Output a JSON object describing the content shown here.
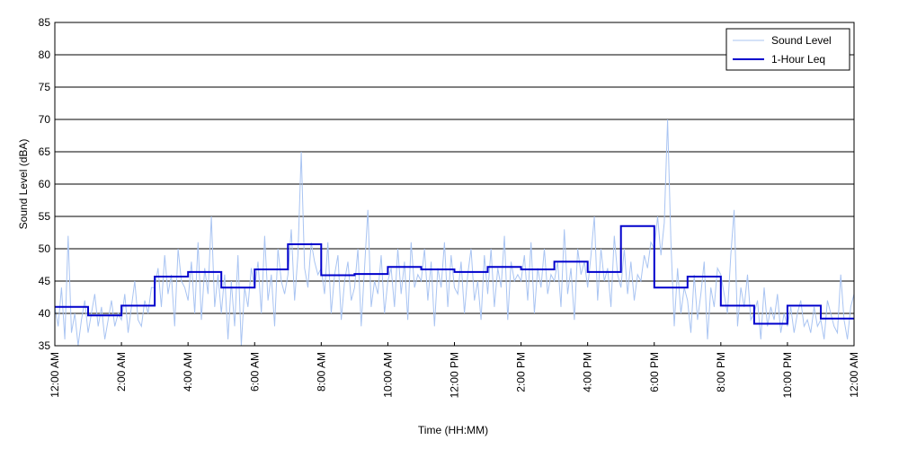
{
  "chart_data": {
    "type": "line",
    "title": "",
    "xlabel": "Time (HH:MM)",
    "ylabel": "Sound Level (dBA)",
    "xlim": [
      0,
      24
    ],
    "ylim": [
      35,
      85
    ],
    "y_ticks": [
      35,
      40,
      45,
      50,
      55,
      60,
      65,
      70,
      75,
      80,
      85
    ],
    "x_ticks": [
      {
        "hour": 0,
        "label": "12:00 AM"
      },
      {
        "hour": 2,
        "label": "2:00 AM"
      },
      {
        "hour": 4,
        "label": "4:00 AM"
      },
      {
        "hour": 6,
        "label": "6:00 AM"
      },
      {
        "hour": 8,
        "label": "8:00 AM"
      },
      {
        "hour": 10,
        "label": "10:00 AM"
      },
      {
        "hour": 12,
        "label": "12:00 PM"
      },
      {
        "hour": 14,
        "label": "2:00 PM"
      },
      {
        "hour": 16,
        "label": "4:00 PM"
      },
      {
        "hour": 18,
        "label": "6:00 PM"
      },
      {
        "hour": 20,
        "label": "8:00 PM"
      },
      {
        "hour": 22,
        "label": "10:00 PM"
      },
      {
        "hour": 24,
        "label": "12:00 AM"
      }
    ],
    "grid": "horizontal",
    "legend_position": "top-right",
    "series": [
      {
        "name": "Sound Level",
        "color": "#a9c4f2",
        "style": "thin-line",
        "x": [
          0,
          0.1,
          0.2,
          0.3,
          0.4,
          0.5,
          0.6,
          0.7,
          0.8,
          0.9,
          1,
          1.1,
          1.2,
          1.3,
          1.4,
          1.5,
          1.6,
          1.7,
          1.8,
          1.9,
          2,
          2.1,
          2.2,
          2.3,
          2.4,
          2.5,
          2.6,
          2.7,
          2.8,
          2.9,
          3,
          3.1,
          3.2,
          3.3,
          3.4,
          3.5,
          3.6,
          3.7,
          3.8,
          3.9,
          4,
          4.1,
          4.2,
          4.3,
          4.4,
          4.5,
          4.6,
          4.7,
          4.8,
          4.9,
          5,
          5.1,
          5.2,
          5.3,
          5.4,
          5.5,
          5.6,
          5.7,
          5.8,
          5.9,
          6,
          6.1,
          6.2,
          6.3,
          6.4,
          6.5,
          6.6,
          6.7,
          6.8,
          6.9,
          7,
          7.1,
          7.2,
          7.3,
          7.4,
          7.5,
          7.6,
          7.7,
          7.8,
          7.9,
          8,
          8.1,
          8.2,
          8.3,
          8.4,
          8.5,
          8.6,
          8.7,
          8.8,
          8.9,
          9,
          9.1,
          9.2,
          9.3,
          9.4,
          9.5,
          9.6,
          9.7,
          9.8,
          9.9,
          10,
          10.1,
          10.2,
          10.3,
          10.4,
          10.5,
          10.6,
          10.7,
          10.8,
          10.9,
          11,
          11.1,
          11.2,
          11.3,
          11.4,
          11.5,
          11.6,
          11.7,
          11.8,
          11.9,
          12,
          12.1,
          12.2,
          12.3,
          12.4,
          12.5,
          12.6,
          12.7,
          12.8,
          12.9,
          13,
          13.1,
          13.2,
          13.3,
          13.4,
          13.5,
          13.6,
          13.7,
          13.8,
          13.9,
          14,
          14.1,
          14.2,
          14.3,
          14.4,
          14.5,
          14.6,
          14.7,
          14.8,
          14.9,
          15,
          15.1,
          15.2,
          15.3,
          15.4,
          15.5,
          15.6,
          15.7,
          15.8,
          15.9,
          16,
          16.1,
          16.2,
          16.3,
          16.4,
          16.5,
          16.6,
          16.7,
          16.8,
          16.9,
          17,
          17.1,
          17.2,
          17.3,
          17.4,
          17.5,
          17.6,
          17.7,
          17.8,
          17.9,
          18,
          18.1,
          18.2,
          18.3,
          18.4,
          18.5,
          18.6,
          18.7,
          18.8,
          18.9,
          19,
          19.1,
          19.2,
          19.3,
          19.4,
          19.5,
          19.6,
          19.7,
          19.8,
          19.9,
          20,
          20.1,
          20.2,
          20.3,
          20.4,
          20.5,
          20.6,
          20.7,
          20.8,
          20.9,
          21,
          21.1,
          21.2,
          21.3,
          21.4,
          21.5,
          21.6,
          21.7,
          21.8,
          21.9,
          22,
          22.1,
          22.2,
          22.3,
          22.4,
          22.5,
          22.6,
          22.7,
          22.8,
          22.9,
          23,
          23.1,
          23.2,
          23.3,
          23.4,
          23.5,
          23.6,
          23.7,
          23.8,
          23.9,
          24
        ],
        "values": [
          41,
          38,
          44,
          36,
          52,
          37,
          40,
          35,
          39,
          42,
          37,
          40,
          43,
          38,
          41,
          36,
          39,
          42,
          38,
          40,
          39,
          43,
          37,
          41,
          45,
          39,
          38,
          42,
          40,
          44,
          44,
          47,
          41,
          49,
          43,
          46,
          38,
          50,
          45,
          44,
          42,
          48,
          40,
          51,
          39,
          47,
          43,
          55,
          41,
          46,
          40,
          46,
          36,
          45,
          38,
          49,
          35,
          44,
          41,
          47,
          44,
          48,
          40,
          52,
          42,
          46,
          38,
          50,
          45,
          43,
          46,
          53,
          42,
          49,
          65,
          47,
          44,
          51,
          48,
          46,
          47,
          43,
          51,
          40,
          46,
          49,
          39,
          45,
          48,
          42,
          44,
          50,
          38,
          47,
          56,
          41,
          45,
          43,
          49,
          40,
          45,
          47,
          41,
          50,
          43,
          48,
          39,
          51,
          44,
          46,
          45,
          50,
          42,
          48,
          38,
          47,
          44,
          51,
          41,
          49,
          44,
          43,
          48,
          40,
          46,
          50,
          42,
          45,
          39,
          49,
          43,
          50,
          41,
          47,
          44,
          52,
          39,
          48,
          45,
          46,
          45,
          49,
          42,
          51,
          40,
          47,
          44,
          50,
          43,
          46,
          45,
          48,
          41,
          53,
          43,
          47,
          39,
          50,
          46,
          48,
          44,
          49,
          55,
          42,
          50,
          45,
          47,
          41,
          52,
          46,
          44,
          50,
          43,
          48,
          42,
          46,
          45,
          49,
          47,
          51,
          50,
          55,
          49,
          54,
          70,
          51,
          38,
          47,
          40,
          44,
          42,
          37,
          46,
          39,
          43,
          48,
          36,
          44,
          41,
          47,
          46,
          43,
          40,
          49,
          56,
          38,
          44,
          41,
          46,
          39,
          40,
          42,
          36,
          44,
          38,
          41,
          39,
          43,
          37,
          40,
          38,
          41,
          37,
          40,
          42,
          38,
          39,
          37,
          41,
          38,
          39,
          36,
          42,
          40,
          38,
          37,
          46,
          39,
          36,
          41,
          43
        ]
      },
      {
        "name": "1-Hour Leq",
        "color": "#0000cc",
        "style": "step",
        "x": [
          0,
          1,
          2,
          3,
          4,
          5,
          6,
          7,
          8,
          9,
          10,
          11,
          12,
          13,
          14,
          15,
          16,
          17,
          18,
          19,
          20,
          21,
          22,
          23,
          24
        ],
        "values": [
          41,
          39.7,
          41.2,
          45.7,
          46.4,
          44,
          46.8,
          50.7,
          45.9,
          46.1,
          47.2,
          46.8,
          46.4,
          47.2,
          46.8,
          48,
          46.4,
          53.5,
          44,
          45.7,
          41.2,
          38.4,
          41.2,
          39.2,
          39.2
        ]
      }
    ]
  }
}
